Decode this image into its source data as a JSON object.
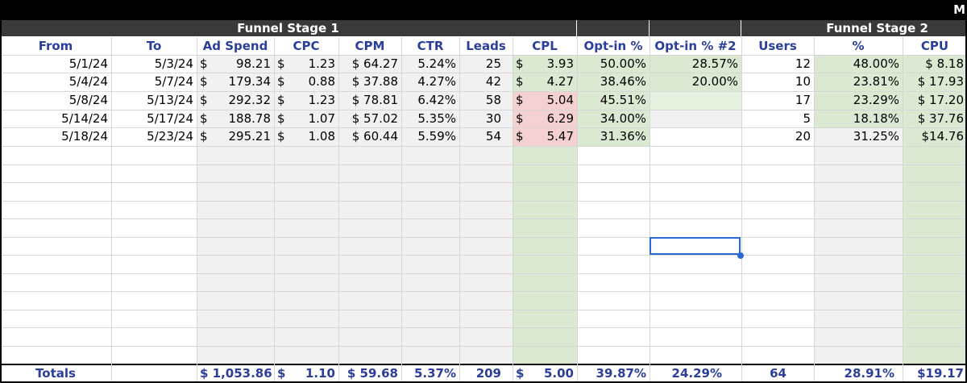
{
  "corner_letter": "M",
  "bands": {
    "stage1": "Funnel Stage 1",
    "stage2": "Funnel Stage 2"
  },
  "headers": {
    "from": "From",
    "to": "To",
    "ad_spend": "Ad Spend",
    "cpc": "CPC",
    "cpm": "CPM",
    "ctr": "CTR",
    "leads": "Leads",
    "cpl": "CPL",
    "optin": "Opt-in %",
    "optin2": "Opt-in % #2",
    "users": "Users",
    "pct": "%",
    "cpu": "CPU"
  },
  "rows": [
    {
      "from": "5/1/24",
      "to": "5/3/24",
      "ad_spend": "98.21",
      "cpc": "1.23",
      "cpm": "$ 64.27",
      "ctr": "5.24%",
      "leads": "25",
      "cpl": "3.93",
      "optin": "50.00%",
      "optin2": "28.57%",
      "users": "12",
      "pct": "48.00%",
      "cpu": "$  8.18"
    },
    {
      "from": "5/4/24",
      "to": "5/7/24",
      "ad_spend": "179.34",
      "cpc": "0.88",
      "cpm": "$ 37.88",
      "ctr": "4.27%",
      "leads": "42",
      "cpl": "4.27",
      "optin": "38.46%",
      "optin2": "20.00%",
      "users": "10",
      "pct": "23.81%",
      "cpu": "$ 17.93"
    },
    {
      "from": "5/8/24",
      "to": "5/13/24",
      "ad_spend": "292.32",
      "cpc": "1.23",
      "cpm": "$ 78.81",
      "ctr": "6.42%",
      "leads": "58",
      "cpl": "5.04",
      "optin": "45.51%",
      "optin2": "",
      "users": "17",
      "pct": "23.29%",
      "cpu": "$ 17.20"
    },
    {
      "from": "5/14/24",
      "to": "5/17/24",
      "ad_spend": "188.78",
      "cpc": "1.07",
      "cpm": "$ 57.02",
      "ctr": "5.35%",
      "leads": "30",
      "cpl": "6.29",
      "optin": "34.00%",
      "optin2": "",
      "users": "5",
      "pct": "18.18%",
      "cpu": "$ 37.76"
    },
    {
      "from": "5/18/24",
      "to": "5/23/24",
      "ad_spend": "295.21",
      "cpc": "1.08",
      "cpm": "$ 60.44",
      "ctr": "5.59%",
      "leads": "54",
      "cpl": "5.47",
      "optin": "31.36%",
      "optin2": "",
      "users": "20",
      "pct": "31.25%",
      "cpu": "$14.76"
    }
  ],
  "totals": {
    "label": "Totals",
    "ad_spend": "$ 1,053.86",
    "cpc": "1.10",
    "cpm": "$ 59.68",
    "ctr": "5.37%",
    "leads": "209",
    "cpl": "5.00",
    "optin": "39.87%",
    "optin2": "24.29%",
    "users": "64",
    "pct": "28.91%",
    "cpu": "$19.17"
  },
  "currency_symbol": "$",
  "colors": {
    "header_text": "#2b3e9a",
    "band_bg": "#3a3a3a",
    "green": "#dbe9d3",
    "red": "#f5d0d0",
    "gray": "#f1f1f1",
    "selection": "#2a6ad6"
  }
}
